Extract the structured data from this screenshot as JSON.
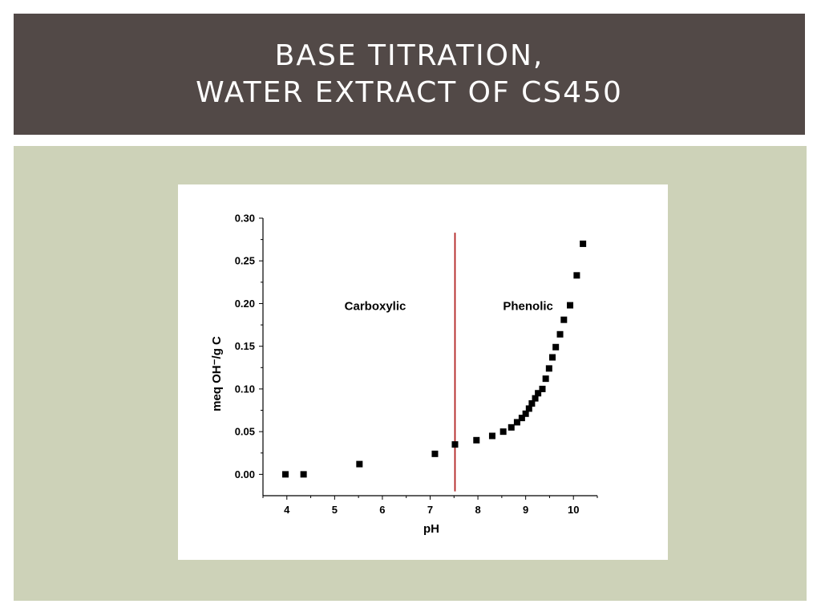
{
  "slide": {
    "title_line1": "Base titration,",
    "title_line2": "water extract of CS450"
  },
  "colors": {
    "title_bar": "#524947",
    "title_text": "#ffffff",
    "content_bg": "#cdd2b8",
    "chart_bg": "#ffffff",
    "marker": "#000000",
    "divider_line": "#b22222"
  },
  "chart_data": {
    "type": "scatter",
    "xlabel": "pH",
    "ylabel": "meq OH⁻/g C",
    "xlim": [
      3.5,
      10.5
    ],
    "ylim": [
      -0.025,
      0.3
    ],
    "x_ticks": [
      "4",
      "5",
      "6",
      "7",
      "8",
      "9",
      "10"
    ],
    "y_ticks": [
      "0.00",
      "0.05",
      "0.10",
      "0.15",
      "0.20",
      "0.25",
      "0.30"
    ],
    "grid": false,
    "marker": "square",
    "x": [
      3.97,
      4.35,
      5.52,
      7.1,
      7.52,
      7.97,
      8.3,
      8.53,
      8.7,
      8.82,
      8.92,
      9.0,
      9.07,
      9.13,
      9.2,
      9.26,
      9.35,
      9.42,
      9.49,
      9.56,
      9.63,
      9.72,
      9.8,
      9.93,
      10.07,
      10.2
    ],
    "y": [
      0.0,
      0.0,
      0.012,
      0.024,
      0.035,
      0.04,
      0.045,
      0.05,
      0.055,
      0.061,
      0.066,
      0.071,
      0.077,
      0.083,
      0.089,
      0.095,
      0.1,
      0.112,
      0.124,
      0.137,
      0.149,
      0.164,
      0.181,
      0.198,
      0.233,
      0.27
    ],
    "vertical_line": {
      "x": 7.52,
      "y_range": [
        -0.02,
        0.283
      ]
    },
    "annotations": [
      {
        "text": "Carboxylic",
        "x": 5.85,
        "y": 0.197
      },
      {
        "text": "Phenolic",
        "x": 9.05,
        "y": 0.197
      }
    ]
  }
}
